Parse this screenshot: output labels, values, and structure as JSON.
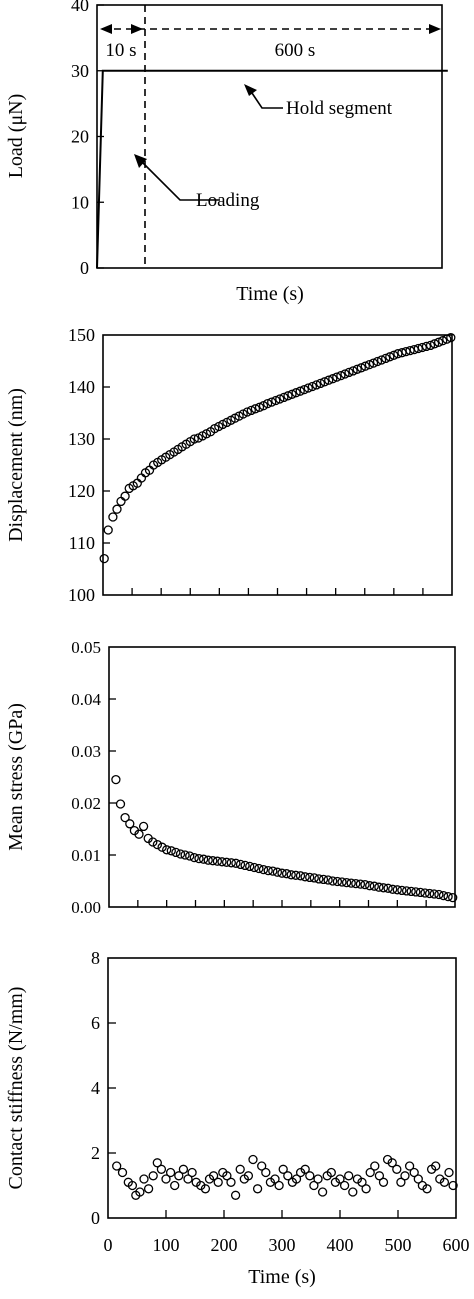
{
  "chart_data": [
    {
      "id": "load",
      "type": "line",
      "ylabel": "Load  (μN)",
      "xlabel": "Time (s)",
      "ylim": [
        0,
        40
      ],
      "yticks": [
        "0",
        "10",
        "20",
        "30",
        "40"
      ],
      "xlim": [
        0,
        600
      ],
      "grid": false,
      "series": [
        {
          "x": [
            0,
            10,
            610
          ],
          "y": [
            0,
            30,
            30
          ]
        }
      ],
      "annotations": {
        "segment_1": "10 s",
        "segment_2": "600 s",
        "loading": "Loading",
        "hold": "Hold segment"
      }
    },
    {
      "id": "displacement",
      "type": "scatter",
      "ylabel": "Displacement (nm)",
      "ylim": [
        100,
        150
      ],
      "yticks": [
        "100",
        "110",
        "120",
        "130",
        "140",
        "150"
      ],
      "xlim": [
        0,
        600
      ],
      "grid": false,
      "x": [
        2,
        9,
        17,
        24,
        31,
        38,
        45,
        52,
        59,
        66,
        73,
        80,
        87,
        94,
        101,
        108,
        115,
        122,
        129,
        136,
        143,
        150,
        157,
        164,
        171,
        178,
        185,
        192,
        199,
        206,
        213,
        220,
        227,
        234,
        241,
        248,
        255,
        262,
        269,
        276,
        283,
        290,
        297,
        304,
        311,
        318,
        325,
        332,
        339,
        346,
        353,
        360,
        367,
        374,
        381,
        388,
        395,
        402,
        409,
        416,
        423,
        430,
        437,
        444,
        451,
        458,
        465,
        472,
        479,
        486,
        493,
        500,
        507,
        514,
        521,
        528,
        535,
        542,
        549,
        556,
        563,
        570,
        577,
        584,
        591,
        598
      ],
      "y": [
        107,
        112.5,
        115,
        116.5,
        118,
        119,
        120.5,
        121,
        121.5,
        122.5,
        123.5,
        124,
        125,
        125.5,
        126,
        126.5,
        127,
        127.5,
        128,
        128.5,
        129,
        129.5,
        130,
        130.2,
        130.6,
        131,
        131.4,
        132,
        132.4,
        132.8,
        133.2,
        133.6,
        134,
        134.4,
        134.8,
        135.2,
        135.5,
        135.8,
        136.1,
        136.4,
        136.8,
        137.1,
        137.4,
        137.7,
        138,
        138.3,
        138.6,
        138.9,
        139.2,
        139.5,
        139.8,
        140.1,
        140.4,
        140.7,
        141,
        141.3,
        141.6,
        141.9,
        142.2,
        142.5,
        142.8,
        143.1,
        143.4,
        143.7,
        144,
        144.3,
        144.6,
        144.9,
        145.2,
        145.5,
        145.8,
        146.1,
        146.4,
        146.6,
        146.8,
        147,
        147.2,
        147.4,
        147.6,
        147.8,
        148,
        148.3,
        148.6,
        148.9,
        149.2,
        149.5
      ]
    },
    {
      "id": "stress",
      "type": "scatter",
      "ylabel": "Mean stress (GPa)",
      "ylim": [
        0,
        0.05
      ],
      "yticks": [
        "0.00",
        "0.01",
        "0.02",
        "0.03",
        "0.04",
        "0.05"
      ],
      "xlim": [
        0,
        600
      ],
      "grid": false,
      "x": [
        12,
        20,
        28,
        36,
        44,
        52,
        60,
        68,
        76,
        84,
        92,
        100,
        108,
        116,
        124,
        132,
        140,
        148,
        156,
        164,
        172,
        180,
        188,
        196,
        204,
        212,
        220,
        228,
        236,
        244,
        252,
        260,
        268,
        276,
        284,
        292,
        300,
        308,
        316,
        324,
        332,
        340,
        348,
        356,
        364,
        372,
        380,
        388,
        396,
        404,
        412,
        420,
        428,
        436,
        444,
        452,
        460,
        468,
        476,
        484,
        492,
        500,
        508,
        516,
        524,
        532,
        540,
        548,
        556,
        564,
        572,
        580,
        588,
        596
      ],
      "y": [
        0.0245,
        0.0198,
        0.0172,
        0.016,
        0.0147,
        0.014,
        0.0155,
        0.0132,
        0.0125,
        0.012,
        0.0115,
        0.011,
        0.0108,
        0.0105,
        0.0102,
        0.01,
        0.0098,
        0.0095,
        0.0093,
        0.0092,
        0.009,
        0.0089,
        0.0088,
        0.0087,
        0.0086,
        0.0085,
        0.0084,
        0.0082,
        0.008,
        0.0078,
        0.0076,
        0.0074,
        0.0072,
        0.007,
        0.0069,
        0.0067,
        0.0065,
        0.0064,
        0.0062,
        0.0061,
        0.006,
        0.0058,
        0.0057,
        0.0056,
        0.0054,
        0.0053,
        0.0052,
        0.005,
        0.0049,
        0.0048,
        0.0047,
        0.0046,
        0.0045,
        0.0044,
        0.0043,
        0.0041,
        0.004,
        0.0038,
        0.0037,
        0.0036,
        0.0034,
        0.0033,
        0.0032,
        0.0031,
        0.003,
        0.0029,
        0.0028,
        0.0027,
        0.0026,
        0.0025,
        0.0024,
        0.0022,
        0.002,
        0.0018
      ]
    },
    {
      "id": "stiffness",
      "type": "scatter",
      "ylabel": "Contact stiffness (N/mm)",
      "xlabel": "Time (s)",
      "ylim": [
        0,
        8
      ],
      "yticks": [
        "0",
        "2",
        "4",
        "6",
        "8"
      ],
      "xlim": [
        0,
        600
      ],
      "xticks": [
        "0",
        "100",
        "200",
        "300",
        "400",
        "500",
        "600"
      ],
      "grid": false,
      "x": [
        15,
        25,
        35,
        42,
        48,
        55,
        62,
        70,
        78,
        85,
        92,
        100,
        108,
        115,
        122,
        130,
        138,
        145,
        152,
        160,
        168,
        175,
        182,
        190,
        198,
        205,
        212,
        220,
        228,
        235,
        242,
        250,
        258,
        265,
        272,
        280,
        288,
        295,
        302,
        310,
        318,
        325,
        332,
        340,
        348,
        355,
        362,
        370,
        378,
        385,
        392,
        400,
        408,
        415,
        422,
        430,
        438,
        445,
        452,
        460,
        468,
        475,
        482,
        490,
        498,
        505,
        512,
        520,
        528,
        535,
        542,
        550,
        558,
        565,
        572,
        580,
        588,
        595
      ],
      "y": [
        1.6,
        1.4,
        1.1,
        1.0,
        0.7,
        0.8,
        1.2,
        0.9,
        1.3,
        1.7,
        1.5,
        1.2,
        1.4,
        1.0,
        1.3,
        1.5,
        1.2,
        1.4,
        1.1,
        1.0,
        0.9,
        1.2,
        1.3,
        1.1,
        1.4,
        1.3,
        1.1,
        0.7,
        1.5,
        1.2,
        1.3,
        1.8,
        0.9,
        1.6,
        1.4,
        1.1,
        1.2,
        1.0,
        1.5,
        1.3,
        1.1,
        1.2,
        1.4,
        1.5,
        1.3,
        1.0,
        1.2,
        0.8,
        1.3,
        1.4,
        1.1,
        1.2,
        1.0,
        1.3,
        0.8,
        1.2,
        1.1,
        0.9,
        1.4,
        1.6,
        1.3,
        1.1,
        1.8,
        1.7,
        1.5,
        1.1,
        1.3,
        1.6,
        1.4,
        1.2,
        1.0,
        0.9,
        1.5,
        1.6,
        1.2,
        1.1,
        1.4,
        1.0
      ]
    }
  ]
}
